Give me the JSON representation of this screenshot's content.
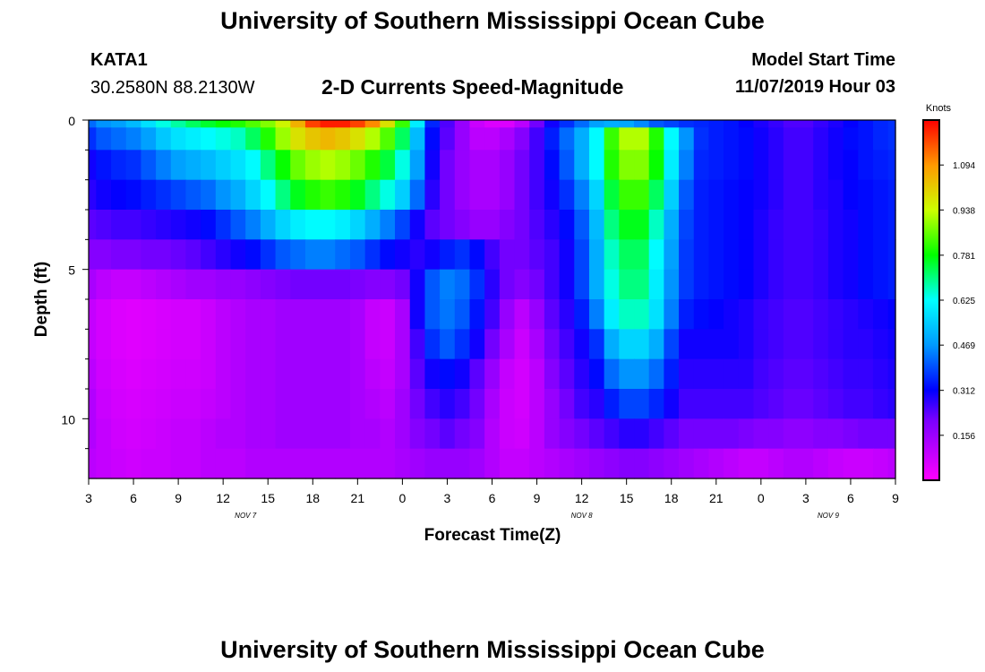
{
  "header": {
    "title_top": "University of Southern Mississippi Ocean Cube",
    "station_id": "KATA1",
    "coords": "30.2580N 88.2130W",
    "product": "2-D Currents Speed-Magnitude",
    "model_start_label": "Model Start Time",
    "model_start_value": "11/07/2019 Hour 03",
    "title_bottom": "University of Southern Mississippi Ocean Cube"
  },
  "chart_data": {
    "type": "heatmap",
    "title": "2-D Currents Speed-Magnitude",
    "xlabel": "Forecast Time(Z)",
    "ylabel": "Depth (ft)",
    "x_range_hours": [
      0,
      54
    ],
    "y_range_ft": [
      0,
      12
    ],
    "x_tick_labels": [
      "3",
      "6",
      "9",
      "12",
      "15",
      "18",
      "21",
      "0",
      "3",
      "6",
      "9",
      "12",
      "15",
      "18",
      "21",
      "0",
      "3",
      "6",
      "9"
    ],
    "y_ticks": [
      0,
      5,
      10
    ],
    "y_minor_ticks": [
      1,
      2,
      3,
      4,
      6,
      7,
      8,
      9,
      11
    ],
    "date_labels": [
      {
        "text": "NOV 7",
        "hour": 10.5
      },
      {
        "text": "NOV 8",
        "hour": 33
      },
      {
        "text": "NOV 9",
        "hour": 49.5
      }
    ],
    "colorbar": {
      "title": "Knots",
      "min": 0,
      "max": 1.25,
      "tick_values": [
        0.156,
        0.312,
        0.469,
        0.625,
        0.781,
        0.938,
        1.094
      ],
      "tick_labels": [
        "0.156",
        "0.312",
        "0.469",
        "0.625",
        "0.781",
        "0.938",
        "1.094"
      ]
    },
    "depth_layers_ft": [
      0.0,
      0.5,
      1.5,
      2.5,
      3.5,
      4.5,
      5.5,
      6.5,
      7.5,
      8.5,
      9.5,
      10.5,
      11.5
    ],
    "speed_knots_hourly": [
      [
        0.42,
        0.46,
        0.48,
        0.52,
        0.58,
        0.64,
        0.68,
        0.72,
        0.75,
        0.78,
        0.8,
        0.84,
        0.88,
        0.95,
        1.05,
        1.18,
        1.22,
        1.22,
        1.18,
        1.1,
        0.98,
        0.82,
        0.6,
        0.35,
        0.25,
        0.18,
        0.12,
        0.08,
        0.08,
        0.14,
        0.22,
        0.3,
        0.36,
        0.42,
        0.48,
        0.5,
        0.49,
        0.45,
        0.4,
        0.38,
        0.36,
        0.35,
        0.34,
        0.33,
        0.31,
        0.29,
        0.27,
        0.25,
        0.25,
        0.27,
        0.29,
        0.31,
        0.33,
        0.35,
        0.36
      ],
      [
        0.36,
        0.4,
        0.42,
        0.44,
        0.48,
        0.54,
        0.58,
        0.6,
        0.62,
        0.64,
        0.66,
        0.72,
        0.8,
        0.9,
        0.98,
        1.02,
        1.04,
        1.02,
        0.98,
        0.92,
        0.84,
        0.72,
        0.52,
        0.32,
        0.24,
        0.18,
        0.14,
        0.14,
        0.16,
        0.2,
        0.26,
        0.34,
        0.42,
        0.5,
        0.62,
        0.82,
        0.92,
        0.92,
        0.8,
        0.62,
        0.46,
        0.36,
        0.34,
        0.33,
        0.32,
        0.3,
        0.28,
        0.26,
        0.26,
        0.28,
        0.3,
        0.32,
        0.33,
        0.35,
        0.36
      ],
      [
        0.3,
        0.33,
        0.35,
        0.36,
        0.4,
        0.44,
        0.48,
        0.5,
        0.52,
        0.55,
        0.58,
        0.62,
        0.7,
        0.78,
        0.86,
        0.9,
        0.92,
        0.9,
        0.86,
        0.8,
        0.74,
        0.64,
        0.48,
        0.3,
        0.22,
        0.18,
        0.16,
        0.16,
        0.18,
        0.22,
        0.26,
        0.32,
        0.4,
        0.5,
        0.62,
        0.8,
        0.88,
        0.88,
        0.78,
        0.6,
        0.44,
        0.35,
        0.34,
        0.33,
        0.32,
        0.3,
        0.28,
        0.26,
        0.26,
        0.28,
        0.3,
        0.31,
        0.33,
        0.34,
        0.35
      ],
      [
        0.28,
        0.3,
        0.31,
        0.32,
        0.34,
        0.36,
        0.38,
        0.4,
        0.42,
        0.46,
        0.5,
        0.56,
        0.62,
        0.7,
        0.76,
        0.8,
        0.82,
        0.8,
        0.76,
        0.7,
        0.64,
        0.55,
        0.42,
        0.28,
        0.22,
        0.18,
        0.16,
        0.16,
        0.18,
        0.22,
        0.26,
        0.3,
        0.36,
        0.44,
        0.56,
        0.74,
        0.82,
        0.82,
        0.72,
        0.55,
        0.4,
        0.34,
        0.33,
        0.32,
        0.31,
        0.3,
        0.28,
        0.26,
        0.26,
        0.28,
        0.29,
        0.31,
        0.32,
        0.33,
        0.34
      ],
      [
        0.24,
        0.25,
        0.26,
        0.26,
        0.27,
        0.28,
        0.29,
        0.3,
        0.32,
        0.36,
        0.4,
        0.44,
        0.5,
        0.56,
        0.6,
        0.62,
        0.62,
        0.6,
        0.56,
        0.5,
        0.44,
        0.38,
        0.3,
        0.24,
        0.22,
        0.2,
        0.18,
        0.18,
        0.2,
        0.22,
        0.25,
        0.28,
        0.32,
        0.4,
        0.52,
        0.7,
        0.76,
        0.76,
        0.66,
        0.5,
        0.38,
        0.34,
        0.33,
        0.32,
        0.31,
        0.29,
        0.27,
        0.26,
        0.26,
        0.27,
        0.29,
        0.3,
        0.32,
        0.33,
        0.34
      ],
      [
        0.2,
        0.2,
        0.21,
        0.21,
        0.22,
        0.22,
        0.23,
        0.24,
        0.26,
        0.28,
        0.3,
        0.32,
        0.36,
        0.4,
        0.42,
        0.44,
        0.44,
        0.42,
        0.4,
        0.36,
        0.32,
        0.3,
        0.28,
        0.3,
        0.34,
        0.36,
        0.32,
        0.26,
        0.22,
        0.22,
        0.24,
        0.26,
        0.3,
        0.38,
        0.5,
        0.66,
        0.72,
        0.72,
        0.62,
        0.48,
        0.37,
        0.34,
        0.33,
        0.32,
        0.31,
        0.29,
        0.27,
        0.26,
        0.26,
        0.27,
        0.29,
        0.3,
        0.32,
        0.33,
        0.34
      ],
      [
        0.16,
        0.14,
        0.13,
        0.13,
        0.14,
        0.15,
        0.16,
        0.17,
        0.17,
        0.18,
        0.18,
        0.19,
        0.2,
        0.21,
        0.22,
        0.22,
        0.22,
        0.22,
        0.21,
        0.2,
        0.2,
        0.22,
        0.3,
        0.4,
        0.44,
        0.42,
        0.36,
        0.28,
        0.22,
        0.2,
        0.22,
        0.26,
        0.3,
        0.38,
        0.5,
        0.64,
        0.7,
        0.7,
        0.6,
        0.46,
        0.37,
        0.34,
        0.33,
        0.32,
        0.31,
        0.29,
        0.27,
        0.26,
        0.26,
        0.27,
        0.29,
        0.3,
        0.32,
        0.33,
        0.34
      ],
      [
        0.13,
        0.1,
        0.08,
        0.07,
        0.08,
        0.09,
        0.1,
        0.1,
        0.12,
        0.14,
        0.15,
        0.16,
        0.16,
        0.17,
        0.17,
        0.17,
        0.17,
        0.17,
        0.16,
        0.13,
        0.12,
        0.16,
        0.3,
        0.4,
        0.43,
        0.4,
        0.33,
        0.26,
        0.18,
        0.14,
        0.18,
        0.24,
        0.28,
        0.34,
        0.44,
        0.6,
        0.66,
        0.66,
        0.58,
        0.44,
        0.34,
        0.32,
        0.31,
        0.3,
        0.29,
        0.27,
        0.26,
        0.25,
        0.25,
        0.26,
        0.27,
        0.28,
        0.29,
        0.3,
        0.31
      ],
      [
        0.13,
        0.1,
        0.08,
        0.07,
        0.08,
        0.09,
        0.1,
        0.1,
        0.12,
        0.14,
        0.15,
        0.16,
        0.16,
        0.17,
        0.17,
        0.17,
        0.17,
        0.17,
        0.16,
        0.13,
        0.12,
        0.16,
        0.26,
        0.36,
        0.4,
        0.36,
        0.3,
        0.22,
        0.16,
        0.12,
        0.16,
        0.22,
        0.26,
        0.3,
        0.36,
        0.5,
        0.56,
        0.56,
        0.5,
        0.38,
        0.3,
        0.3,
        0.3,
        0.3,
        0.29,
        0.27,
        0.26,
        0.25,
        0.25,
        0.26,
        0.27,
        0.28,
        0.28,
        0.29,
        0.3
      ],
      [
        0.14,
        0.11,
        0.09,
        0.08,
        0.09,
        0.1,
        0.11,
        0.11,
        0.12,
        0.14,
        0.15,
        0.16,
        0.16,
        0.17,
        0.17,
        0.17,
        0.17,
        0.17,
        0.16,
        0.14,
        0.13,
        0.16,
        0.24,
        0.3,
        0.32,
        0.3,
        0.24,
        0.18,
        0.13,
        0.1,
        0.14,
        0.2,
        0.24,
        0.28,
        0.32,
        0.42,
        0.46,
        0.46,
        0.42,
        0.34,
        0.28,
        0.28,
        0.28,
        0.28,
        0.28,
        0.26,
        0.25,
        0.24,
        0.24,
        0.25,
        0.26,
        0.27,
        0.27,
        0.28,
        0.29
      ],
      [
        0.15,
        0.12,
        0.1,
        0.09,
        0.1,
        0.11,
        0.12,
        0.12,
        0.13,
        0.14,
        0.15,
        0.16,
        0.16,
        0.17,
        0.17,
        0.17,
        0.17,
        0.17,
        0.16,
        0.15,
        0.14,
        0.17,
        0.22,
        0.26,
        0.28,
        0.26,
        0.22,
        0.16,
        0.12,
        0.1,
        0.14,
        0.18,
        0.22,
        0.26,
        0.28,
        0.34,
        0.38,
        0.38,
        0.35,
        0.3,
        0.26,
        0.26,
        0.26,
        0.26,
        0.26,
        0.25,
        0.24,
        0.23,
        0.23,
        0.24,
        0.25,
        0.26,
        0.26,
        0.27,
        0.28
      ],
      [
        0.15,
        0.13,
        0.11,
        0.1,
        0.11,
        0.12,
        0.13,
        0.13,
        0.14,
        0.15,
        0.15,
        0.16,
        0.16,
        0.17,
        0.17,
        0.17,
        0.17,
        0.17,
        0.16,
        0.16,
        0.15,
        0.17,
        0.2,
        0.22,
        0.24,
        0.22,
        0.2,
        0.15,
        0.12,
        0.11,
        0.14,
        0.18,
        0.2,
        0.22,
        0.24,
        0.26,
        0.28,
        0.28,
        0.26,
        0.24,
        0.22,
        0.22,
        0.22,
        0.22,
        0.21,
        0.2,
        0.2,
        0.19,
        0.19,
        0.2,
        0.2,
        0.21,
        0.22,
        0.22,
        0.22
      ],
      [
        0.14,
        0.13,
        0.12,
        0.11,
        0.12,
        0.12,
        0.13,
        0.13,
        0.14,
        0.14,
        0.14,
        0.15,
        0.15,
        0.15,
        0.15,
        0.15,
        0.15,
        0.15,
        0.15,
        0.15,
        0.15,
        0.16,
        0.17,
        0.18,
        0.18,
        0.18,
        0.17,
        0.15,
        0.13,
        0.13,
        0.14,
        0.15,
        0.16,
        0.17,
        0.18,
        0.19,
        0.2,
        0.2,
        0.19,
        0.18,
        0.17,
        0.16,
        0.15,
        0.14,
        0.13,
        0.13,
        0.14,
        0.15,
        0.15,
        0.14,
        0.13,
        0.12,
        0.12,
        0.13,
        0.14
      ]
    ]
  }
}
